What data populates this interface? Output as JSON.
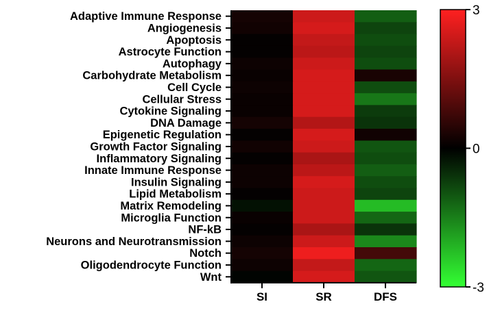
{
  "chart_data": {
    "type": "heatmap",
    "title": "",
    "xlabel": "",
    "ylabel": "",
    "columns": [
      "SI",
      "SR",
      "DFS"
    ],
    "rows": [
      "Adaptive Immune Response",
      "Angiogenesis",
      "Apoptosis",
      "Astrocyte Function",
      "Autophagy",
      "Carbohydrate Metabolism",
      "Cell Cycle",
      "Cellular Stress",
      "Cytokine Signaling",
      "DNA Damage",
      "Epigenetic Regulation",
      "Growth Factor Signaling",
      "Inflammatory Signaling",
      "Innate Immune Response",
      "Insulin Signaling",
      "Lipid Metabolism",
      "Matrix Remodeling",
      "Microglia Function",
      "NF-kB",
      "Neurons and Neurotransmission",
      "Notch",
      "Oligodendrocyte Function",
      "Wnt"
    ],
    "values": [
      [
        0.25,
        2.4,
        -1.1
      ],
      [
        0.2,
        2.5,
        -0.8
      ],
      [
        0.05,
        2.3,
        -0.9
      ],
      [
        0.05,
        2.2,
        -0.8
      ],
      [
        0.15,
        2.4,
        -0.9
      ],
      [
        0.1,
        2.5,
        0.3
      ],
      [
        0.15,
        2.5,
        -0.9
      ],
      [
        0.1,
        2.5,
        -1.4
      ],
      [
        0.1,
        2.5,
        -0.7
      ],
      [
        0.25,
        2.1,
        -0.6
      ],
      [
        0.05,
        2.5,
        0.2
      ],
      [
        0.2,
        2.4,
        -1.0
      ],
      [
        0.05,
        2.0,
        -0.9
      ],
      [
        0.15,
        2.2,
        -1.1
      ],
      [
        0.15,
        2.5,
        -0.9
      ],
      [
        0.05,
        2.4,
        -0.8
      ],
      [
        -0.2,
        2.4,
        -2.2
      ],
      [
        0.1,
        2.4,
        -1.2
      ],
      [
        0.05,
        2.0,
        -0.6
      ],
      [
        0.15,
        2.4,
        -1.6
      ],
      [
        0.25,
        2.8,
        0.8
      ],
      [
        0.15,
        2.3,
        -1.2
      ],
      [
        -0.05,
        2.5,
        -1.0
      ]
    ],
    "colorscale": {
      "min": -3,
      "max": 3,
      "min_color": "#33ff33",
      "mid_color": "#000000",
      "max_color": "#ff2020",
      "ticks": [
        "3",
        "0",
        "-3"
      ]
    }
  }
}
